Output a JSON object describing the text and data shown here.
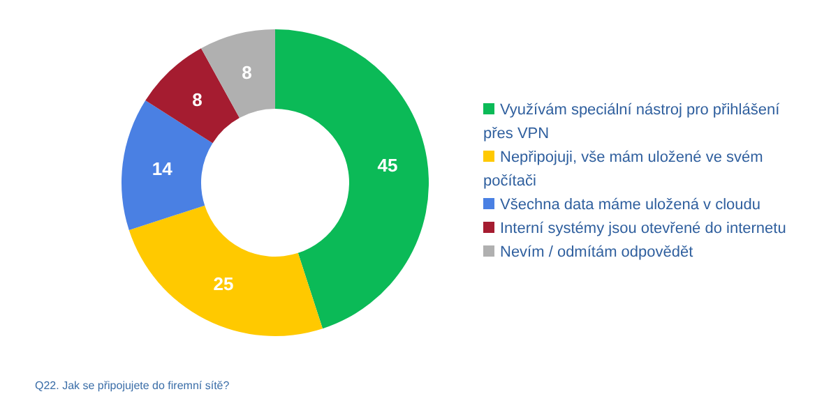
{
  "chart_data": {
    "type": "donut",
    "categories": [
      "Využívám speciální nástroj pro přihlášení přes VPN",
      "Nepřipojuji, vše mám uložené ve svém počítači",
      "Všechna data máme uložená v cloudu",
      "Interní systémy jsou otevřené do internetu",
      "Nevím / odmítám odpovědět"
    ],
    "values": [
      45,
      25,
      14,
      8,
      8
    ],
    "colors": [
      "#0bba57",
      "#ffc900",
      "#4a80e3",
      "#a51c30",
      "#b0b0b0"
    ],
    "data_labels": true,
    "legend": "right",
    "annotations": [
      "Q22. Jak se připojujete do firemní sítě?"
    ]
  }
}
